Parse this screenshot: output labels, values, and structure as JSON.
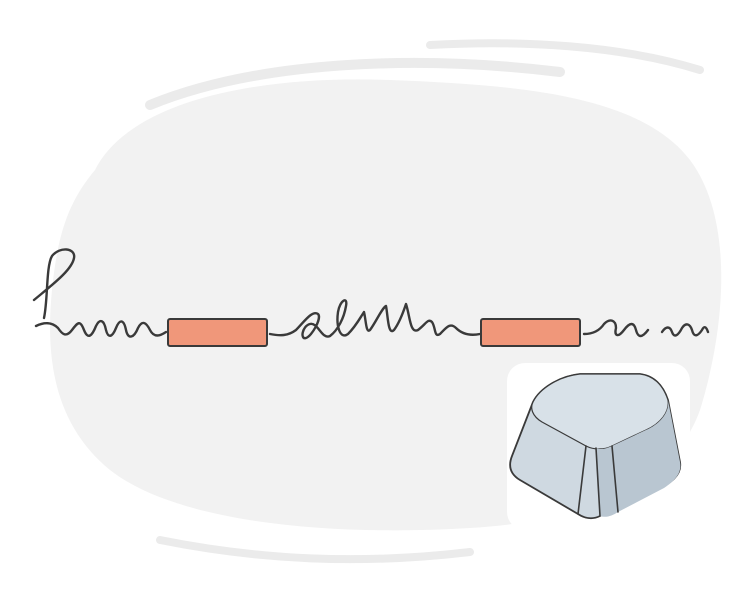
{
  "colors": {
    "background": "#ffffff",
    "blob": "#f2f2f2",
    "blob_outline": "#ebebeb",
    "handwriting_stroke": "#3a3a3a",
    "blank_fill": "#f0977a",
    "blank_stroke": "#3a3a3a",
    "keycap_fill": "#cfd9e1",
    "keycap_top": "#d8e1e8",
    "keycap_shadow": "#b9c6d1",
    "keycap_stroke": "#3a3a3a"
  },
  "illustration": {
    "handwriting_segments": 4,
    "blank_boxes": 2,
    "keycap": "space-key-icon"
  }
}
